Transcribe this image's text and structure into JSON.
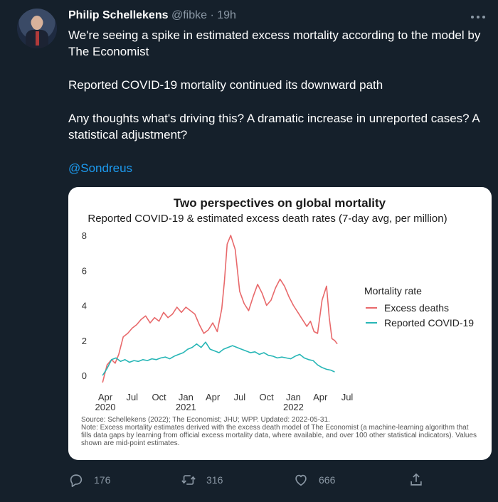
{
  "tweet": {
    "author_name": "Philip Schellekens",
    "handle": "@fibke",
    "separator": "·",
    "time": "19h",
    "paragraphs": [
      "We're seeing a spike in estimated excess mortality according to the model by The Economist",
      "Reported COVID-19 mortality continued its downward path",
      "Any thoughts what's driving this? A dramatic increase in unreported cases? A statistical adjustment?"
    ],
    "mention": "@Sondreus"
  },
  "actions": {
    "reply_count": "176",
    "retweet_count": "316",
    "like_count": "666"
  },
  "icons": {
    "reply": "reply-icon",
    "retweet": "retweet-icon",
    "like": "heart-icon",
    "share": "share-icon",
    "more": "more-icon"
  },
  "colors": {
    "background": "#15202b",
    "link": "#1d9bf0",
    "excess": "#e8696b",
    "reported": "#27b6b6"
  },
  "chart_data": {
    "type": "line",
    "title": "Two perspectives on global mortality",
    "subtitle": "Reported COVID-19 & estimated excess death rates (7-day avg, per million)",
    "ylim": [
      0,
      8
    ],
    "yticks": [
      0,
      2,
      4,
      6,
      8
    ],
    "xlim": [
      0,
      27
    ],
    "xtick_positions": [
      0,
      3,
      6,
      9,
      12,
      15,
      18,
      21,
      24,
      27
    ],
    "xticks": [
      "Apr",
      "Jul",
      "Oct",
      "Jan",
      "Apr",
      "Jul",
      "Oct",
      "Jan",
      "Apr",
      "Jul"
    ],
    "xticks_year": [
      "2020",
      "",
      "",
      "2021",
      "",
      "",
      "",
      "2022",
      "",
      ""
    ],
    "legend_title": "Mortality rate",
    "legend_position": "right",
    "series": [
      {
        "name": "Excess deaths",
        "color": "#e8696b",
        "x": [
          -0.3,
          0.2,
          0.7,
          1.1,
          1.5,
          2.0,
          2.5,
          3.0,
          3.5,
          4.0,
          4.5,
          5.0,
          5.5,
          6.0,
          6.5,
          7.0,
          7.5,
          8.0,
          8.5,
          9.0,
          9.5,
          10.0,
          10.5,
          11.0,
          11.5,
          12.0,
          12.5,
          13.0,
          13.3,
          13.6,
          14.0,
          14.5,
          15.0,
          15.5,
          16.0,
          16.5,
          17.0,
          17.5,
          18.0,
          18.5,
          19.0,
          19.5,
          20.0,
          20.5,
          21.0,
          21.5,
          22.0,
          22.5,
          22.9,
          23.3,
          23.7,
          24.2,
          24.7,
          25.0,
          25.3,
          25.6,
          25.9
        ],
        "y": [
          -0.4,
          0.6,
          0.9,
          0.7,
          1.2,
          2.2,
          2.4,
          2.7,
          2.9,
          3.2,
          3.4,
          3.0,
          3.3,
          3.1,
          3.6,
          3.3,
          3.5,
          3.9,
          3.6,
          3.9,
          3.7,
          3.5,
          2.9,
          2.4,
          2.6,
          3.0,
          2.5,
          3.8,
          5.4,
          7.5,
          8.0,
          7.2,
          4.8,
          4.1,
          3.7,
          4.5,
          5.2,
          4.7,
          4.0,
          4.3,
          5.0,
          5.5,
          5.1,
          4.5,
          4.0,
          3.6,
          3.2,
          2.8,
          3.1,
          2.5,
          2.4,
          4.3,
          5.1,
          3.3,
          2.1,
          2.0,
          1.8
        ]
      },
      {
        "name": "Reported COVID-19",
        "color": "#27b6b6",
        "x": [
          -0.3,
          0.2,
          0.7,
          1.2,
          1.7,
          2.2,
          2.7,
          3.2,
          3.7,
          4.2,
          4.7,
          5.2,
          5.7,
          6.2,
          6.7,
          7.2,
          7.7,
          8.2,
          8.7,
          9.2,
          9.7,
          10.2,
          10.7,
          11.2,
          11.7,
          12.2,
          12.7,
          13.2,
          13.7,
          14.2,
          14.7,
          15.2,
          15.7,
          16.2,
          16.7,
          17.2,
          17.7,
          18.2,
          18.7,
          19.2,
          19.7,
          20.2,
          20.7,
          21.2,
          21.7,
          22.2,
          22.7,
          23.2,
          23.7,
          24.2,
          24.7,
          25.2,
          25.6
        ],
        "y": [
          0.0,
          0.4,
          0.9,
          1.0,
          0.8,
          0.9,
          0.75,
          0.85,
          0.8,
          0.9,
          0.85,
          0.95,
          0.9,
          1.0,
          1.05,
          0.95,
          1.1,
          1.2,
          1.3,
          1.5,
          1.6,
          1.8,
          1.6,
          1.9,
          1.5,
          1.4,
          1.3,
          1.5,
          1.6,
          1.7,
          1.6,
          1.5,
          1.4,
          1.3,
          1.35,
          1.2,
          1.3,
          1.15,
          1.1,
          1.0,
          1.05,
          1.0,
          0.95,
          1.1,
          1.2,
          1.0,
          0.9,
          0.85,
          0.6,
          0.45,
          0.35,
          0.3,
          0.2
        ]
      }
    ],
    "source_note": "Source: Schellekens (2022); The Economist; JHU; WPP. Updated: 2022-05-31.",
    "method_note": "Note: Excess mortality estimates derived with the excess death model of The Economist (a machine-learning algorithm that fills data gaps by learning from official excess mortality data, where available, and over 100 other statistical indicators). Values shown are mid-point estimates."
  }
}
